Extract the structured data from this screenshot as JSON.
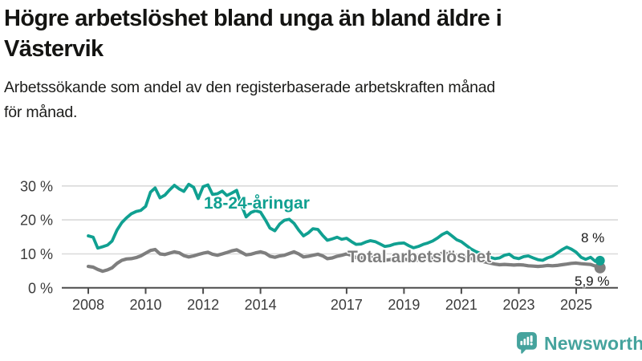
{
  "header": {
    "title_lines": [
      "Högre arbetslöshet bland unga än bland äldre i",
      "Västervik"
    ],
    "subtitle_lines": [
      "Arbetssökande som andel av den registerbaserade arbetskraften månad",
      "för månad."
    ]
  },
  "colors": {
    "young": "#10A091",
    "total": "#7E7E7E",
    "grid": "#dadada",
    "axis": "#4c4c4c",
    "brand": "#45A39D"
  },
  "branding": {
    "name": "Newsworthy"
  },
  "chart_data": {
    "type": "line",
    "title": "Högre arbetslöshet bland unga än bland äldre i Västervik",
    "subtitle": "Arbetssökande som andel av den registerbaserade arbetskraften månad för månad.",
    "unit": "%",
    "grid": true,
    "legend_position": "inline-labels",
    "x_axis": {
      "ticks": [
        2008,
        2010,
        2012,
        2014,
        2017,
        2019,
        2021,
        2023,
        2025
      ],
      "range": [
        2007.9,
        2026.0
      ]
    },
    "y_axis": {
      "ticks": [
        {
          "value": 0,
          "label": "0 %"
        },
        {
          "value": 10,
          "label": "10 %"
        },
        {
          "value": 20,
          "label": "20 %"
        },
        {
          "value": 30,
          "label": "30 %"
        }
      ],
      "range": [
        0,
        33
      ]
    },
    "series": [
      {
        "name": "18-24-åringar",
        "color": "#10A091",
        "end_label": "8 %",
        "end_value": 8.0,
        "points": [
          [
            2008.0,
            15.3
          ],
          [
            2008.17,
            14.9
          ],
          [
            2008.33,
            11.7
          ],
          [
            2008.5,
            12.1
          ],
          [
            2008.67,
            12.6
          ],
          [
            2008.83,
            13.8
          ],
          [
            2009.0,
            17.0
          ],
          [
            2009.17,
            19.2
          ],
          [
            2009.33,
            20.6
          ],
          [
            2009.5,
            21.8
          ],
          [
            2009.67,
            22.5
          ],
          [
            2009.83,
            22.8
          ],
          [
            2010.0,
            24.0
          ],
          [
            2010.17,
            28.2
          ],
          [
            2010.33,
            29.4
          ],
          [
            2010.5,
            26.5
          ],
          [
            2010.67,
            27.3
          ],
          [
            2010.83,
            28.8
          ],
          [
            2011.0,
            30.2
          ],
          [
            2011.17,
            29.1
          ],
          [
            2011.33,
            28.4
          ],
          [
            2011.5,
            30.5
          ],
          [
            2011.67,
            29.6
          ],
          [
            2011.83,
            26.3
          ],
          [
            2012.0,
            29.8
          ],
          [
            2012.17,
            30.3
          ],
          [
            2012.33,
            27.5
          ],
          [
            2012.5,
            27.7
          ],
          [
            2012.67,
            28.5
          ],
          [
            2012.83,
            27.2
          ],
          [
            2013.0,
            27.9
          ],
          [
            2013.17,
            28.7
          ],
          [
            2013.33,
            24.5
          ],
          [
            2013.5,
            20.9
          ],
          [
            2013.67,
            22.2
          ],
          [
            2013.83,
            22.7
          ],
          [
            2014.0,
            22.3
          ],
          [
            2014.17,
            20.0
          ],
          [
            2014.33,
            17.6
          ],
          [
            2014.5,
            16.8
          ],
          [
            2014.67,
            18.8
          ],
          [
            2014.83,
            19.9
          ],
          [
            2015.0,
            20.2
          ],
          [
            2015.17,
            19.0
          ],
          [
            2015.33,
            17.0
          ],
          [
            2015.5,
            15.3
          ],
          [
            2015.67,
            16.2
          ],
          [
            2015.83,
            17.4
          ],
          [
            2016.0,
            17.2
          ],
          [
            2016.17,
            15.4
          ],
          [
            2016.33,
            14.0
          ],
          [
            2016.5,
            14.4
          ],
          [
            2016.67,
            14.9
          ],
          [
            2016.83,
            14.3
          ],
          [
            2017.0,
            14.6
          ],
          [
            2017.17,
            13.6
          ],
          [
            2017.33,
            12.8
          ],
          [
            2017.5,
            12.9
          ],
          [
            2017.67,
            13.5
          ],
          [
            2017.83,
            13.9
          ],
          [
            2018.0,
            13.6
          ],
          [
            2018.17,
            12.9
          ],
          [
            2018.33,
            12.2
          ],
          [
            2018.5,
            12.4
          ],
          [
            2018.67,
            12.9
          ],
          [
            2018.83,
            13.1
          ],
          [
            2019.0,
            13.2
          ],
          [
            2019.17,
            12.4
          ],
          [
            2019.33,
            11.8
          ],
          [
            2019.5,
            12.2
          ],
          [
            2019.67,
            12.8
          ],
          [
            2019.83,
            13.2
          ],
          [
            2020.0,
            13.8
          ],
          [
            2020.17,
            14.7
          ],
          [
            2020.33,
            15.7
          ],
          [
            2020.5,
            16.4
          ],
          [
            2020.67,
            15.3
          ],
          [
            2020.83,
            14.2
          ],
          [
            2021.0,
            13.6
          ],
          [
            2021.17,
            12.5
          ],
          [
            2021.33,
            11.5
          ],
          [
            2021.5,
            10.7
          ],
          [
            2021.67,
            10.1
          ],
          [
            2021.83,
            9.5
          ],
          [
            2022.0,
            9.0
          ],
          [
            2022.17,
            8.6
          ],
          [
            2022.33,
            8.8
          ],
          [
            2022.5,
            9.6
          ],
          [
            2022.67,
            9.9
          ],
          [
            2022.83,
            8.9
          ],
          [
            2023.0,
            8.6
          ],
          [
            2023.17,
            9.2
          ],
          [
            2023.33,
            9.4
          ],
          [
            2023.5,
            8.8
          ],
          [
            2023.67,
            8.3
          ],
          [
            2023.83,
            8.1
          ],
          [
            2024.0,
            8.8
          ],
          [
            2024.17,
            9.3
          ],
          [
            2024.33,
            10.2
          ],
          [
            2024.5,
            11.2
          ],
          [
            2024.67,
            12.0
          ],
          [
            2024.83,
            11.4
          ],
          [
            2025.0,
            10.5
          ],
          [
            2025.17,
            9.0
          ],
          [
            2025.33,
            8.4
          ],
          [
            2025.5,
            9.0
          ],
          [
            2025.67,
            7.8
          ],
          [
            2025.83,
            8.0
          ]
        ]
      },
      {
        "name": "Total arbetslöshet",
        "color": "#7E7E7E",
        "end_label": "5,9 %",
        "end_value": 5.9,
        "points": [
          [
            2008.0,
            6.3
          ],
          [
            2008.17,
            6.1
          ],
          [
            2008.33,
            5.4
          ],
          [
            2008.5,
            4.9
          ],
          [
            2008.67,
            5.3
          ],
          [
            2008.83,
            5.9
          ],
          [
            2009.0,
            7.2
          ],
          [
            2009.17,
            8.1
          ],
          [
            2009.33,
            8.5
          ],
          [
            2009.5,
            8.6
          ],
          [
            2009.67,
            8.9
          ],
          [
            2009.83,
            9.4
          ],
          [
            2010.0,
            10.2
          ],
          [
            2010.17,
            11.0
          ],
          [
            2010.33,
            11.3
          ],
          [
            2010.5,
            10.0
          ],
          [
            2010.67,
            9.8
          ],
          [
            2010.83,
            10.2
          ],
          [
            2011.0,
            10.6
          ],
          [
            2011.17,
            10.3
          ],
          [
            2011.33,
            9.5
          ],
          [
            2011.5,
            9.1
          ],
          [
            2011.67,
            9.4
          ],
          [
            2011.83,
            9.8
          ],
          [
            2012.0,
            10.2
          ],
          [
            2012.17,
            10.5
          ],
          [
            2012.33,
            9.9
          ],
          [
            2012.5,
            9.6
          ],
          [
            2012.67,
            10.0
          ],
          [
            2012.83,
            10.4
          ],
          [
            2013.0,
            10.9
          ],
          [
            2013.17,
            11.2
          ],
          [
            2013.33,
            10.5
          ],
          [
            2013.5,
            9.7
          ],
          [
            2013.67,
            9.9
          ],
          [
            2013.83,
            10.3
          ],
          [
            2014.0,
            10.6
          ],
          [
            2014.17,
            10.2
          ],
          [
            2014.33,
            9.3
          ],
          [
            2014.5,
            9.0
          ],
          [
            2014.67,
            9.4
          ],
          [
            2014.83,
            9.6
          ],
          [
            2015.0,
            10.1
          ],
          [
            2015.17,
            10.6
          ],
          [
            2015.33,
            10.0
          ],
          [
            2015.5,
            9.1
          ],
          [
            2015.67,
            9.3
          ],
          [
            2015.83,
            9.6
          ],
          [
            2016.0,
            9.9
          ],
          [
            2016.17,
            9.4
          ],
          [
            2016.33,
            8.6
          ],
          [
            2016.5,
            8.8
          ],
          [
            2016.67,
            9.3
          ],
          [
            2016.83,
            9.6
          ],
          [
            2017.0,
            10.0
          ],
          [
            2017.17,
            9.6
          ],
          [
            2017.33,
            8.9
          ],
          [
            2017.5,
            8.8
          ],
          [
            2017.67,
            9.1
          ],
          [
            2017.83,
            9.3
          ],
          [
            2018.0,
            9.1
          ],
          [
            2018.17,
            8.7
          ],
          [
            2018.33,
            8.1
          ],
          [
            2018.5,
            8.3
          ],
          [
            2018.67,
            8.5
          ],
          [
            2018.83,
            8.6
          ],
          [
            2019.0,
            8.5
          ],
          [
            2019.17,
            8.2
          ],
          [
            2019.33,
            8.0
          ],
          [
            2019.5,
            8.2
          ],
          [
            2019.67,
            8.4
          ],
          [
            2019.83,
            8.7
          ],
          [
            2020.0,
            8.9
          ],
          [
            2020.17,
            9.6
          ],
          [
            2020.33,
            10.2
          ],
          [
            2020.5,
            10.1
          ],
          [
            2020.67,
            9.8
          ],
          [
            2020.83,
            9.5
          ],
          [
            2021.0,
            9.3
          ],
          [
            2021.17,
            8.9
          ],
          [
            2021.33,
            8.6
          ],
          [
            2021.5,
            8.2
          ],
          [
            2021.67,
            7.9
          ],
          [
            2021.83,
            7.6
          ],
          [
            2022.0,
            7.3
          ],
          [
            2022.17,
            7.0
          ],
          [
            2022.33,
            6.8
          ],
          [
            2022.5,
            6.9
          ],
          [
            2022.67,
            6.8
          ],
          [
            2022.83,
            6.7
          ],
          [
            2023.0,
            6.8
          ],
          [
            2023.17,
            6.7
          ],
          [
            2023.33,
            6.5
          ],
          [
            2023.5,
            6.4
          ],
          [
            2023.67,
            6.3
          ],
          [
            2023.83,
            6.4
          ],
          [
            2024.0,
            6.6
          ],
          [
            2024.17,
            6.5
          ],
          [
            2024.33,
            6.6
          ],
          [
            2024.5,
            6.8
          ],
          [
            2024.67,
            7.0
          ],
          [
            2024.83,
            7.2
          ],
          [
            2025.0,
            7.3
          ],
          [
            2025.17,
            7.1
          ],
          [
            2025.33,
            7.0
          ],
          [
            2025.5,
            6.9
          ],
          [
            2025.67,
            6.4
          ],
          [
            2025.83,
            5.9
          ]
        ]
      }
    ]
  }
}
